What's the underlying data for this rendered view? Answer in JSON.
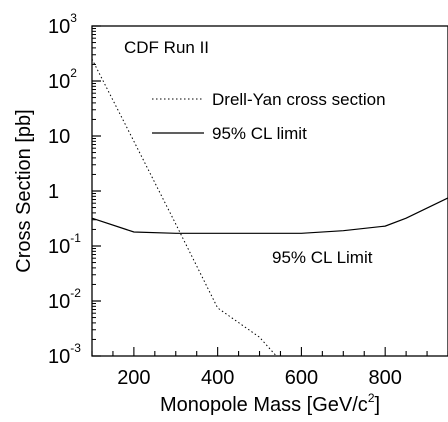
{
  "chart_data": {
    "type": "line",
    "title": "",
    "xlabel": "Monopole Mass [GeV/c",
    "xlabel_sup": "2",
    "xlabel_end": "]",
    "ylabel": "Cross Section [pb]",
    "xlim": [
      100,
      950
    ],
    "ylim": [
      0.001,
      1000
    ],
    "yscale": "log",
    "grid": false,
    "x_ticks": [
      {
        "value": 200,
        "label": "200"
      },
      {
        "value": 400,
        "label": "400"
      },
      {
        "value": 600,
        "label": "600"
      },
      {
        "value": 800,
        "label": "800"
      }
    ],
    "y_ticks": [
      {
        "value": 1000,
        "base": "10",
        "sup": "3"
      },
      {
        "value": 100,
        "base": "10",
        "sup": "2"
      },
      {
        "value": 10,
        "base": "10",
        "sup": ""
      },
      {
        "value": 1,
        "base": "1",
        "sup": ""
      },
      {
        "value": 0.1,
        "base": "10",
        "sup": "-1"
      },
      {
        "value": 0.01,
        "base": "10",
        "sup": "-2"
      },
      {
        "value": 0.001,
        "base": "10",
        "sup": "-3"
      }
    ],
    "series": [
      {
        "name": "Drell-Yan cross section",
        "style": "dotted",
        "x": [
          100,
          200,
          300,
          400,
          500,
          540
        ],
        "y": [
          250,
          8,
          0.25,
          0.0075,
          0.0022,
          0.001
        ]
      },
      {
        "name": "95% CL limit",
        "style": "solid",
        "x": [
          100,
          200,
          300,
          400,
          500,
          600,
          700,
          800,
          850,
          950
        ],
        "y": [
          0.32,
          0.18,
          0.17,
          0.17,
          0.17,
          0.17,
          0.19,
          0.23,
          0.32,
          0.75
        ]
      }
    ],
    "annotations": {
      "run_label": "CDF Run II",
      "curve_label": "95% CL Limit"
    },
    "legend": {
      "placement": "top-right",
      "entries": [
        {
          "label": "Drell-Yan cross section",
          "style": "dotted"
        },
        {
          "label": "95% CL limit",
          "style": "solid"
        }
      ]
    }
  }
}
